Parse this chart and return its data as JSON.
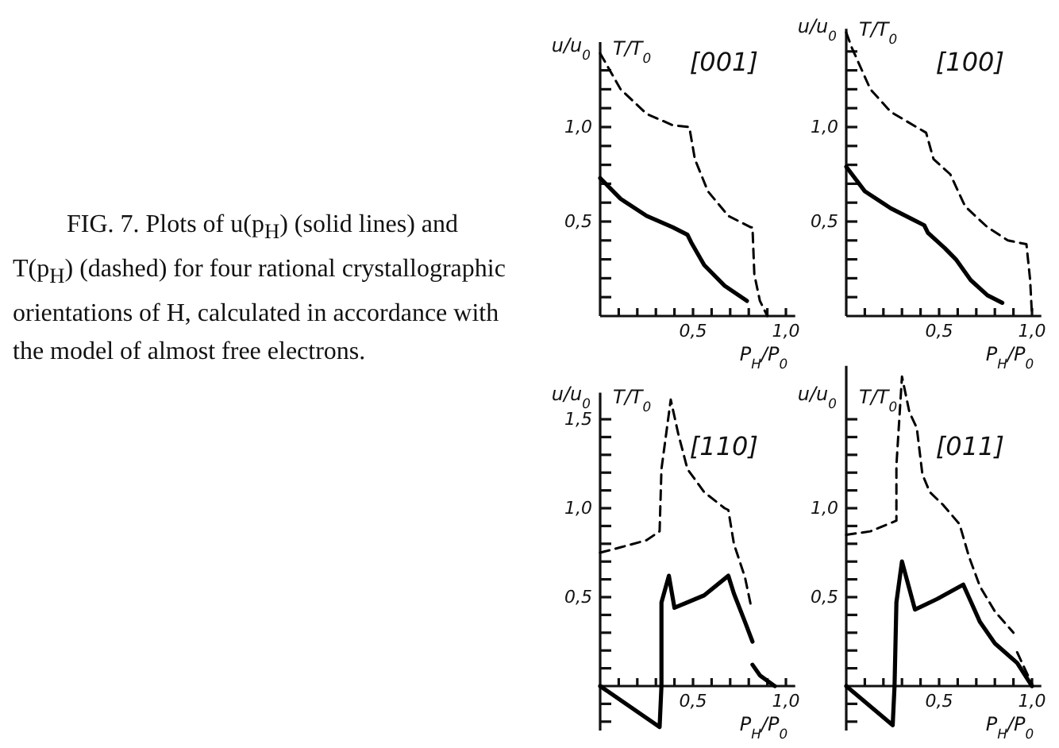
{
  "chart_data": [
    {
      "type": "other",
      "annotations": [
        "FIG. 7.  Plots of u(p$_{H}$) (solid lines) and T(p$_{H}$) (dashed) for four rational crystallographic orientations of H, calculated in accordance with the model of almost free electrons."
      ]
    },
    {
      "type": "line",
      "title": "[001]",
      "xlabel": "P$_{H}$/P$_{0}$",
      "ylabel": "u/u$_{0}$",
      "annotations": [
        "T/T$_{0}$"
      ],
      "xlim": [
        0,
        1.05
      ],
      "ylim": [
        0,
        1.45
      ],
      "xticks": [
        {
          "value": 0.1,
          "label": null
        },
        {
          "value": 0.2,
          "label": null
        },
        {
          "value": 0.3,
          "label": null
        },
        {
          "value": 0.4,
          "label": null
        },
        {
          "value": 0.5,
          "label": "0,5"
        },
        {
          "value": 0.6,
          "label": null
        },
        {
          "value": 0.7,
          "label": null
        },
        {
          "value": 0.8,
          "label": null
        },
        {
          "value": 0.9,
          "label": null
        },
        {
          "value": 1.0,
          "label": "1,0"
        }
      ],
      "yticks": [
        {
          "value": 0.1,
          "label": null
        },
        {
          "value": 0.2,
          "label": null
        },
        {
          "value": 0.3,
          "label": null
        },
        {
          "value": 0.4,
          "label": null
        },
        {
          "value": 0.5,
          "label": "0,5"
        },
        {
          "value": 0.6,
          "label": null
        },
        {
          "value": 0.7,
          "label": null
        },
        {
          "value": 0.8,
          "label": null
        },
        {
          "value": 0.9,
          "label": null
        },
        {
          "value": 1.0,
          "label": "1,0"
        },
        {
          "value": 1.1,
          "label": null
        },
        {
          "value": 1.2,
          "label": null
        },
        {
          "value": 1.3,
          "label": null
        }
      ],
      "series": [
        {
          "color": "#000000",
          "line_style": "solid",
          "x": [
            0,
            0.11,
            0.25,
            0.39,
            0.47,
            0.49,
            0.56,
            0.67,
            0.79
          ],
          "values": [
            0.73,
            0.62,
            0.53,
            0.47,
            0.43,
            0.39,
            0.27,
            0.16,
            0.08
          ]
        },
        {
          "color": "#000000",
          "line_style": "dashed",
          "x": [
            0,
            0.11,
            0.25,
            0.39,
            0.48,
            0.51,
            0.58,
            0.69,
            0.81,
            0.82,
            0.83,
            0.86,
            0.9
          ],
          "values": [
            1.39,
            1.2,
            1.07,
            1.01,
            1.0,
            0.83,
            0.66,
            0.53,
            0.47,
            0.47,
            0.22,
            0.08,
            0
          ]
        }
      ]
    },
    {
      "type": "line",
      "title": "[100]",
      "xlabel": "P$_{H}$/P$_{0}$",
      "ylabel": "u/u$_{0}$",
      "annotations": [
        "T/T$_{0}$"
      ],
      "xlim": [
        0,
        1.05
      ],
      "ylim": [
        0,
        1.52
      ],
      "xticks": [
        {
          "value": 0.1,
          "label": null
        },
        {
          "value": 0.2,
          "label": null
        },
        {
          "value": 0.3,
          "label": null
        },
        {
          "value": 0.4,
          "label": null
        },
        {
          "value": 0.5,
          "label": "0,5"
        },
        {
          "value": 0.6,
          "label": null
        },
        {
          "value": 0.7,
          "label": null
        },
        {
          "value": 0.8,
          "label": null
        },
        {
          "value": 0.9,
          "label": null
        },
        {
          "value": 1.0,
          "label": "1,0"
        }
      ],
      "yticks": [
        {
          "value": 0.1,
          "label": null
        },
        {
          "value": 0.2,
          "label": null
        },
        {
          "value": 0.3,
          "label": null
        },
        {
          "value": 0.4,
          "label": null
        },
        {
          "value": 0.5,
          "label": "0,5"
        },
        {
          "value": 0.6,
          "label": null
        },
        {
          "value": 0.7,
          "label": null
        },
        {
          "value": 0.8,
          "label": null
        },
        {
          "value": 0.9,
          "label": null
        },
        {
          "value": 1.0,
          "label": "1,0"
        },
        {
          "value": 1.1,
          "label": null
        },
        {
          "value": 1.2,
          "label": null
        },
        {
          "value": 1.3,
          "label": null
        },
        {
          "value": 1.4,
          "label": null
        }
      ],
      "series": [
        {
          "color": "#000000",
          "line_style": "solid",
          "x": [
            0,
            0.1,
            0.24,
            0.36,
            0.42,
            0.44,
            0.53,
            0.59,
            0.67,
            0.76,
            0.84
          ],
          "values": [
            0.79,
            0.66,
            0.57,
            0.51,
            0.48,
            0.44,
            0.36,
            0.3,
            0.19,
            0.11,
            0.07
          ]
        },
        {
          "color": "#000000",
          "line_style": "dashed",
          "x": [
            0,
            0.03,
            0.13,
            0.24,
            0.43,
            0.47,
            0.56,
            0.64,
            0.76,
            0.87,
            0.97,
            0.99,
            1.0
          ],
          "values": [
            1.5,
            1.42,
            1.2,
            1.08,
            0.97,
            0.83,
            0.75,
            0.58,
            0.47,
            0.4,
            0.38,
            0.19,
            0
          ]
        }
      ]
    },
    {
      "type": "line",
      "title": "[110]",
      "xlabel": "P$_{H}$/P$_{0}$",
      "ylabel": "u/u$_{0}$",
      "annotations": [
        "T/T$_{0}$"
      ],
      "xlim": [
        0,
        1.05
      ],
      "ylim": [
        -0.25,
        1.65
      ],
      "xticks": [
        {
          "value": 0.1,
          "label": null
        },
        {
          "value": 0.2,
          "label": null
        },
        {
          "value": 0.3,
          "label": null
        },
        {
          "value": 0.4,
          "label": null
        },
        {
          "value": 0.5,
          "label": "0,5"
        },
        {
          "value": 0.6,
          "label": null
        },
        {
          "value": 0.7,
          "label": null
        },
        {
          "value": 0.8,
          "label": null
        },
        {
          "value": 0.9,
          "label": null
        },
        {
          "value": 1.0,
          "label": "1,0"
        }
      ],
      "yticks": [
        {
          "value": -0.2,
          "label": null
        },
        {
          "value": -0.1,
          "label": null
        },
        {
          "value": 0.1,
          "label": null
        },
        {
          "value": 0.2,
          "label": null
        },
        {
          "value": 0.3,
          "label": null
        },
        {
          "value": 0.4,
          "label": null
        },
        {
          "value": 0.5,
          "label": "0,5"
        },
        {
          "value": 0.6,
          "label": null
        },
        {
          "value": 0.7,
          "label": null
        },
        {
          "value": 0.8,
          "label": null
        },
        {
          "value": 0.9,
          "label": null
        },
        {
          "value": 1.0,
          "label": "1,0"
        },
        {
          "value": 1.1,
          "label": null
        },
        {
          "value": 1.2,
          "label": null
        },
        {
          "value": 1.3,
          "label": null
        },
        {
          "value": 1.4,
          "label": null
        },
        {
          "value": 1.5,
          "label": "1,5"
        }
      ],
      "series": [
        {
          "color": "#000000",
          "line_style": "solid",
          "x": [
            0,
            0.32,
            0.33,
            0.33,
            0.37,
            0.4,
            0.56,
            0.69,
            0.72,
            0.78,
            0.82
          ],
          "values": [
            0,
            -0.23,
            0,
            0.47,
            0.62,
            0.44,
            0.51,
            0.62,
            0.52,
            0.36,
            0.25
          ]
        },
        {
          "color": "#000000",
          "line_style": "solid",
          "x": [
            0.82,
            0.86,
            0.9,
            0.94
          ],
          "values": [
            0.12,
            0.06,
            0.03,
            0
          ]
        },
        {
          "color": "#000000",
          "line_style": "dashed",
          "x": [
            0,
            0.11,
            0.25,
            0.32,
            0.33,
            0.38,
            0.42,
            0.47,
            0.56,
            0.67,
            0.69,
            0.72,
            0.78,
            0.81
          ],
          "values": [
            0.75,
            0.78,
            0.82,
            0.87,
            1.22,
            1.61,
            1.42,
            1.22,
            1.09,
            1.0,
            0.99,
            0.8,
            0.61,
            0.46
          ]
        }
      ]
    },
    {
      "type": "line",
      "title": "[011]",
      "xlabel": "P$_{H}$/P$_{0}$",
      "ylabel": "u/u$_{0}$",
      "annotations": [
        "T/T$_{0}$"
      ],
      "xlim": [
        0,
        1.05
      ],
      "ylim": [
        -0.25,
        1.8
      ],
      "xticks": [
        {
          "value": 0.1,
          "label": null
        },
        {
          "value": 0.2,
          "label": null
        },
        {
          "value": 0.3,
          "label": null
        },
        {
          "value": 0.4,
          "label": null
        },
        {
          "value": 0.5,
          "label": "0,5"
        },
        {
          "value": 0.6,
          "label": null
        },
        {
          "value": 0.7,
          "label": null
        },
        {
          "value": 0.8,
          "label": null
        },
        {
          "value": 0.9,
          "label": null
        },
        {
          "value": 1.0,
          "label": "1,0"
        }
      ],
      "yticks": [
        {
          "value": -0.2,
          "label": null
        },
        {
          "value": -0.1,
          "label": null
        },
        {
          "value": 0.1,
          "label": null
        },
        {
          "value": 0.2,
          "label": null
        },
        {
          "value": 0.3,
          "label": null
        },
        {
          "value": 0.4,
          "label": null
        },
        {
          "value": 0.5,
          "label": "0,5"
        },
        {
          "value": 0.6,
          "label": null
        },
        {
          "value": 0.7,
          "label": null
        },
        {
          "value": 0.8,
          "label": null
        },
        {
          "value": 0.9,
          "label": null
        },
        {
          "value": 1.0,
          "label": "1,0"
        },
        {
          "value": 1.1,
          "label": null
        },
        {
          "value": 1.2,
          "label": null
        },
        {
          "value": 1.3,
          "label": null
        },
        {
          "value": 1.4,
          "label": null
        },
        {
          "value": 1.5,
          "label": null
        }
      ],
      "series": [
        {
          "color": "#000000",
          "line_style": "solid",
          "x": [
            0,
            0.25,
            0.26,
            0.27,
            0.3,
            0.37,
            0.49,
            0.63,
            0.66,
            0.72,
            0.8,
            0.92,
            1.0
          ],
          "values": [
            0,
            -0.22,
            0,
            0.47,
            0.7,
            0.43,
            0.49,
            0.57,
            0.5,
            0.36,
            0.24,
            0.13,
            0
          ]
        },
        {
          "color": "#000000",
          "line_style": "dashed",
          "x": [
            0,
            0.13,
            0.27,
            0.27,
            0.3,
            0.34,
            0.38,
            0.41,
            0.45,
            0.52,
            0.61,
            0.66,
            0.72,
            0.8,
            0.9,
            0.91,
            0.92,
            1.0
          ],
          "values": [
            0.85,
            0.87,
            0.93,
            1.24,
            1.74,
            1.54,
            1.45,
            1.19,
            1.09,
            1.02,
            0.91,
            0.73,
            0.56,
            0.42,
            0.3,
            null,
            0.19,
            0.01
          ]
        }
      ]
    }
  ]
}
